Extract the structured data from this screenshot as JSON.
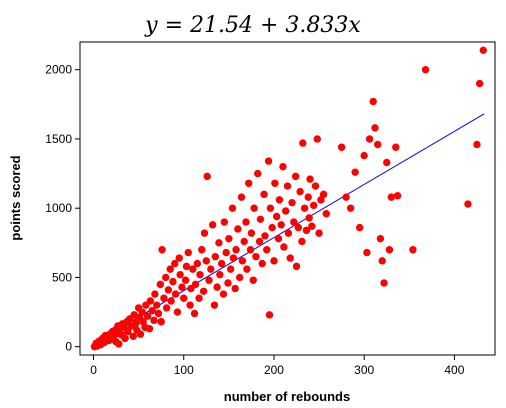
{
  "chart_data": {
    "type": "scatter",
    "title": "y = 21.54 + 3.833x",
    "xlabel": "number of rebounds",
    "ylabel": "points scored",
    "xlim": [
      -15,
      445
    ],
    "ylim": [
      -60,
      2200
    ],
    "x_ticks": [
      0,
      100,
      200,
      300,
      400
    ],
    "y_ticks": [
      0,
      500,
      1000,
      1500,
      2000
    ],
    "grid": false,
    "legend": "none",
    "marker_color": "#ff0000",
    "line_color": "#0000ff",
    "regression": {
      "intercept": 21.54,
      "slope": 3.833,
      "x_range": [
        0,
        433
      ]
    },
    "points": [
      [
        1,
        0
      ],
      [
        2,
        10
      ],
      [
        3,
        25
      ],
      [
        4,
        5
      ],
      [
        5,
        20
      ],
      [
        6,
        40
      ],
      [
        8,
        15
      ],
      [
        10,
        60
      ],
      [
        12,
        30
      ],
      [
        13,
        80
      ],
      [
        15,
        50
      ],
      [
        17,
        45
      ],
      [
        18,
        90
      ],
      [
        20,
        70
      ],
      [
        21,
        110
      ],
      [
        22,
        55
      ],
      [
        24,
        120
      ],
      [
        25,
        35
      ],
      [
        26,
        95
      ],
      [
        27,
        150
      ],
      [
        28,
        20
      ],
      [
        30,
        130
      ],
      [
        31,
        85
      ],
      [
        32,
        165
      ],
      [
        34,
        140
      ],
      [
        35,
        60
      ],
      [
        37,
        180
      ],
      [
        38,
        110
      ],
      [
        40,
        200
      ],
      [
        42,
        150
      ],
      [
        44,
        75
      ],
      [
        45,
        230
      ],
      [
        47,
        170
      ],
      [
        48,
        120
      ],
      [
        50,
        280
      ],
      [
        51,
        210
      ],
      [
        52,
        90
      ],
      [
        54,
        250
      ],
      [
        55,
        180
      ],
      [
        57,
        140
      ],
      [
        58,
        300
      ],
      [
        60,
        220
      ],
      [
        62,
        130
      ],
      [
        63,
        330
      ],
      [
        65,
        260
      ],
      [
        67,
        190
      ],
      [
        68,
        380
      ],
      [
        70,
        300
      ],
      [
        72,
        240
      ],
      [
        74,
        450
      ],
      [
        75,
        180
      ],
      [
        76,
        700
      ],
      [
        78,
        350
      ],
      [
        80,
        500
      ],
      [
        81,
        280
      ],
      [
        83,
        410
      ],
      [
        85,
        560
      ],
      [
        86,
        330
      ],
      [
        88,
        470
      ],
      [
        90,
        600
      ],
      [
        91,
        380
      ],
      [
        93,
        250
      ],
      [
        95,
        640
      ],
      [
        96,
        520
      ],
      [
        98,
        430
      ],
      [
        100,
        350
      ],
      [
        102,
        480
      ],
      [
        103,
        580
      ],
      [
        105,
        680
      ],
      [
        107,
        300
      ],
      [
        108,
        420
      ],
      [
        110,
        560
      ],
      [
        112,
        240
      ],
      [
        113,
        450
      ],
      [
        115,
        600
      ],
      [
        117,
        350
      ],
      [
        118,
        520
      ],
      [
        120,
        700
      ],
      [
        122,
        400
      ],
      [
        123,
        820
      ],
      [
        125,
        620
      ],
      [
        126,
        1230
      ],
      [
        128,
        480
      ],
      [
        130,
        560
      ],
      [
        132,
        880
      ],
      [
        134,
        300
      ],
      [
        135,
        650
      ],
      [
        137,
        430
      ],
      [
        139,
        750
      ],
      [
        140,
        520
      ],
      [
        142,
        600
      ],
      [
        144,
        380
      ],
      [
        145,
        900
      ],
      [
        147,
        680
      ],
      [
        149,
        460
      ],
      [
        150,
        780
      ],
      [
        152,
        560
      ],
      [
        154,
        1000
      ],
      [
        155,
        640
      ],
      [
        157,
        420
      ],
      [
        158,
        700
      ],
      [
        160,
        850
      ],
      [
        162,
        500
      ],
      [
        164,
        1080
      ],
      [
        165,
        620
      ],
      [
        167,
        760
      ],
      [
        169,
        900
      ],
      [
        170,
        560
      ],
      [
        172,
        1180
      ],
      [
        174,
        700
      ],
      [
        175,
        820
      ],
      [
        177,
        480
      ],
      [
        178,
        1000
      ],
      [
        180,
        650
      ],
      [
        182,
        1250
      ],
      [
        184,
        760
      ],
      [
        185,
        920
      ],
      [
        187,
        600
      ],
      [
        189,
        1100
      ],
      [
        190,
        800
      ],
      [
        192,
        700
      ],
      [
        194,
        1340
      ],
      [
        195,
        230
      ],
      [
        196,
        1000
      ],
      [
        198,
        860
      ],
      [
        200,
        620
      ],
      [
        201,
        1180
      ],
      [
        203,
        940
      ],
      [
        205,
        780
      ],
      [
        206,
        1060
      ],
      [
        208,
        880
      ],
      [
        210,
        1300
      ],
      [
        211,
        720
      ],
      [
        213,
        980
      ],
      [
        215,
        1160
      ],
      [
        216,
        820
      ],
      [
        218,
        640
      ],
      [
        220,
        1040
      ],
      [
        222,
        900
      ],
      [
        224,
        1230
      ],
      [
        225,
        580
      ],
      [
        227,
        860
      ],
      [
        229,
        1120
      ],
      [
        231,
        760
      ],
      [
        232,
        1470
      ],
      [
        234,
        1000
      ],
      [
        236,
        840
      ],
      [
        238,
        1080
      ],
      [
        239,
        930
      ],
      [
        240,
        1210
      ],
      [
        242,
        870
      ],
      [
        244,
        1020
      ],
      [
        246,
        1160
      ],
      [
        248,
        1500
      ],
      [
        250,
        820
      ],
      [
        252,
        1060
      ],
      [
        255,
        1100
      ],
      [
        258,
        960
      ],
      [
        275,
        1440
      ],
      [
        280,
        1080
      ],
      [
        285,
        1000
      ],
      [
        290,
        1260
      ],
      [
        295,
        860
      ],
      [
        300,
        1380
      ],
      [
        303,
        680
      ],
      [
        306,
        1500
      ],
      [
        310,
        1770
      ],
      [
        312,
        1580
      ],
      [
        315,
        1460
      ],
      [
        318,
        780
      ],
      [
        320,
        620
      ],
      [
        322,
        460
      ],
      [
        325,
        1330
      ],
      [
        328,
        700
      ],
      [
        330,
        1080
      ],
      [
        335,
        1440
      ],
      [
        337,
        1090
      ],
      [
        354,
        700
      ],
      [
        368,
        2000
      ],
      [
        415,
        1030
      ],
      [
        425,
        1460
      ],
      [
        428,
        1900
      ],
      [
        432,
        2140
      ]
    ]
  }
}
